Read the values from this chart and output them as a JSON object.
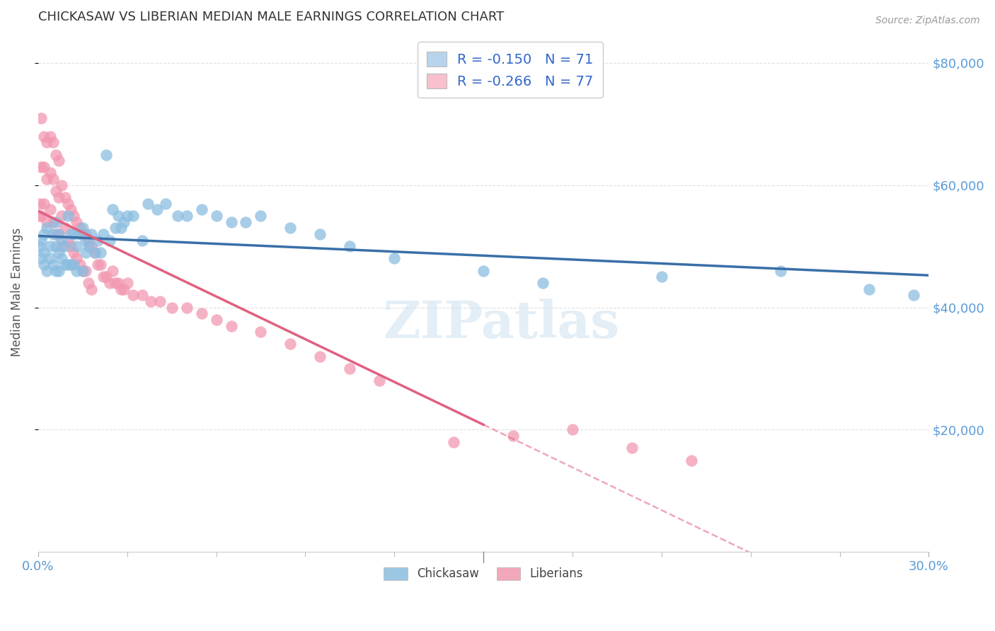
{
  "title": "CHICKASAW VS LIBERIAN MEDIAN MALE EARNINGS CORRELATION CHART",
  "source": "Source: ZipAtlas.com",
  "ylabel": "Median Male Earnings",
  "yticks": [
    20000,
    40000,
    60000,
    80000
  ],
  "ytick_labels": [
    "$20,000",
    "$40,000",
    "$60,000",
    "$80,000"
  ],
  "watermark": "ZIPatlas",
  "chickasaw_R": "-0.150",
  "chickasaw_N": "71",
  "liberian_R": "-0.266",
  "liberian_N": "77",
  "chickasaw_scatter_color": "#8bbde0",
  "liberian_scatter_color": "#f298b0",
  "chickasaw_legend_color": "#b8d4ed",
  "liberian_legend_color": "#f8c0cc",
  "trendline_chickasaw_color": "#3a6fa8",
  "trendline_liberian_color": "#e06080",
  "xlim": [
    0.0,
    0.3
  ],
  "ylim": [
    0,
    85000
  ],
  "background_color": "#ffffff",
  "grid_color": "#e0e0e0",
  "xtick_minor_positions": [
    0.03,
    0.06,
    0.09,
    0.12,
    0.15,
    0.18,
    0.21,
    0.24,
    0.27
  ],
  "chickasaw_x": [
    0.0005,
    0.001,
    0.001,
    0.002,
    0.002,
    0.002,
    0.003,
    0.003,
    0.004,
    0.004,
    0.005,
    0.005,
    0.006,
    0.006,
    0.006,
    0.007,
    0.007,
    0.007,
    0.008,
    0.008,
    0.009,
    0.009,
    0.01,
    0.01,
    0.011,
    0.011,
    0.012,
    0.012,
    0.013,
    0.013,
    0.014,
    0.015,
    0.015,
    0.016,
    0.016,
    0.017,
    0.018,
    0.019,
    0.02,
    0.021,
    0.022,
    0.023,
    0.024,
    0.025,
    0.026,
    0.027,
    0.028,
    0.029,
    0.03,
    0.032,
    0.035,
    0.037,
    0.04,
    0.043,
    0.047,
    0.05,
    0.055,
    0.06,
    0.065,
    0.07,
    0.075,
    0.085,
    0.095,
    0.105,
    0.12,
    0.15,
    0.17,
    0.21,
    0.25,
    0.28,
    0.295
  ],
  "chickasaw_y": [
    50000,
    51000,
    48000,
    52000,
    49000,
    47000,
    53000,
    46000,
    50000,
    48000,
    52000,
    47000,
    50000,
    54000,
    46000,
    49000,
    52000,
    46000,
    51000,
    48000,
    50000,
    47000,
    55000,
    47000,
    52000,
    47000,
    52000,
    47000,
    50000,
    46000,
    52000,
    53000,
    46000,
    51000,
    49000,
    50000,
    52000,
    49000,
    51000,
    49000,
    52000,
    65000,
    51000,
    56000,
    53000,
    55000,
    53000,
    54000,
    55000,
    55000,
    51000,
    57000,
    56000,
    57000,
    55000,
    55000,
    56000,
    55000,
    54000,
    54000,
    55000,
    53000,
    52000,
    50000,
    48000,
    46000,
    44000,
    45000,
    46000,
    43000,
    42000
  ],
  "liberian_x": [
    0.0003,
    0.0005,
    0.001,
    0.001,
    0.001,
    0.002,
    0.002,
    0.002,
    0.003,
    0.003,
    0.003,
    0.004,
    0.004,
    0.004,
    0.005,
    0.005,
    0.005,
    0.006,
    0.006,
    0.006,
    0.007,
    0.007,
    0.007,
    0.008,
    0.008,
    0.008,
    0.009,
    0.009,
    0.01,
    0.01,
    0.011,
    0.011,
    0.012,
    0.012,
    0.013,
    0.013,
    0.014,
    0.014,
    0.015,
    0.015,
    0.016,
    0.016,
    0.017,
    0.017,
    0.018,
    0.018,
    0.019,
    0.02,
    0.021,
    0.022,
    0.023,
    0.024,
    0.025,
    0.026,
    0.027,
    0.028,
    0.029,
    0.03,
    0.032,
    0.035,
    0.038,
    0.041,
    0.045,
    0.05,
    0.055,
    0.06,
    0.065,
    0.075,
    0.085,
    0.095,
    0.105,
    0.115,
    0.14,
    0.16,
    0.18,
    0.2,
    0.22
  ],
  "liberian_y": [
    55000,
    57000,
    71000,
    63000,
    55000,
    68000,
    63000,
    57000,
    67000,
    61000,
    54000,
    68000,
    62000,
    56000,
    67000,
    61000,
    54000,
    65000,
    59000,
    52000,
    64000,
    58000,
    52000,
    60000,
    55000,
    50000,
    58000,
    53000,
    57000,
    51000,
    56000,
    50000,
    55000,
    49000,
    54000,
    48000,
    53000,
    47000,
    52000,
    46000,
    52000,
    46000,
    51000,
    44000,
    50000,
    43000,
    49000,
    47000,
    47000,
    45000,
    45000,
    44000,
    46000,
    44000,
    44000,
    43000,
    43000,
    44000,
    42000,
    42000,
    41000,
    41000,
    40000,
    40000,
    39000,
    38000,
    37000,
    36000,
    34000,
    32000,
    30000,
    28000,
    18000,
    19000,
    20000,
    17000,
    15000
  ]
}
